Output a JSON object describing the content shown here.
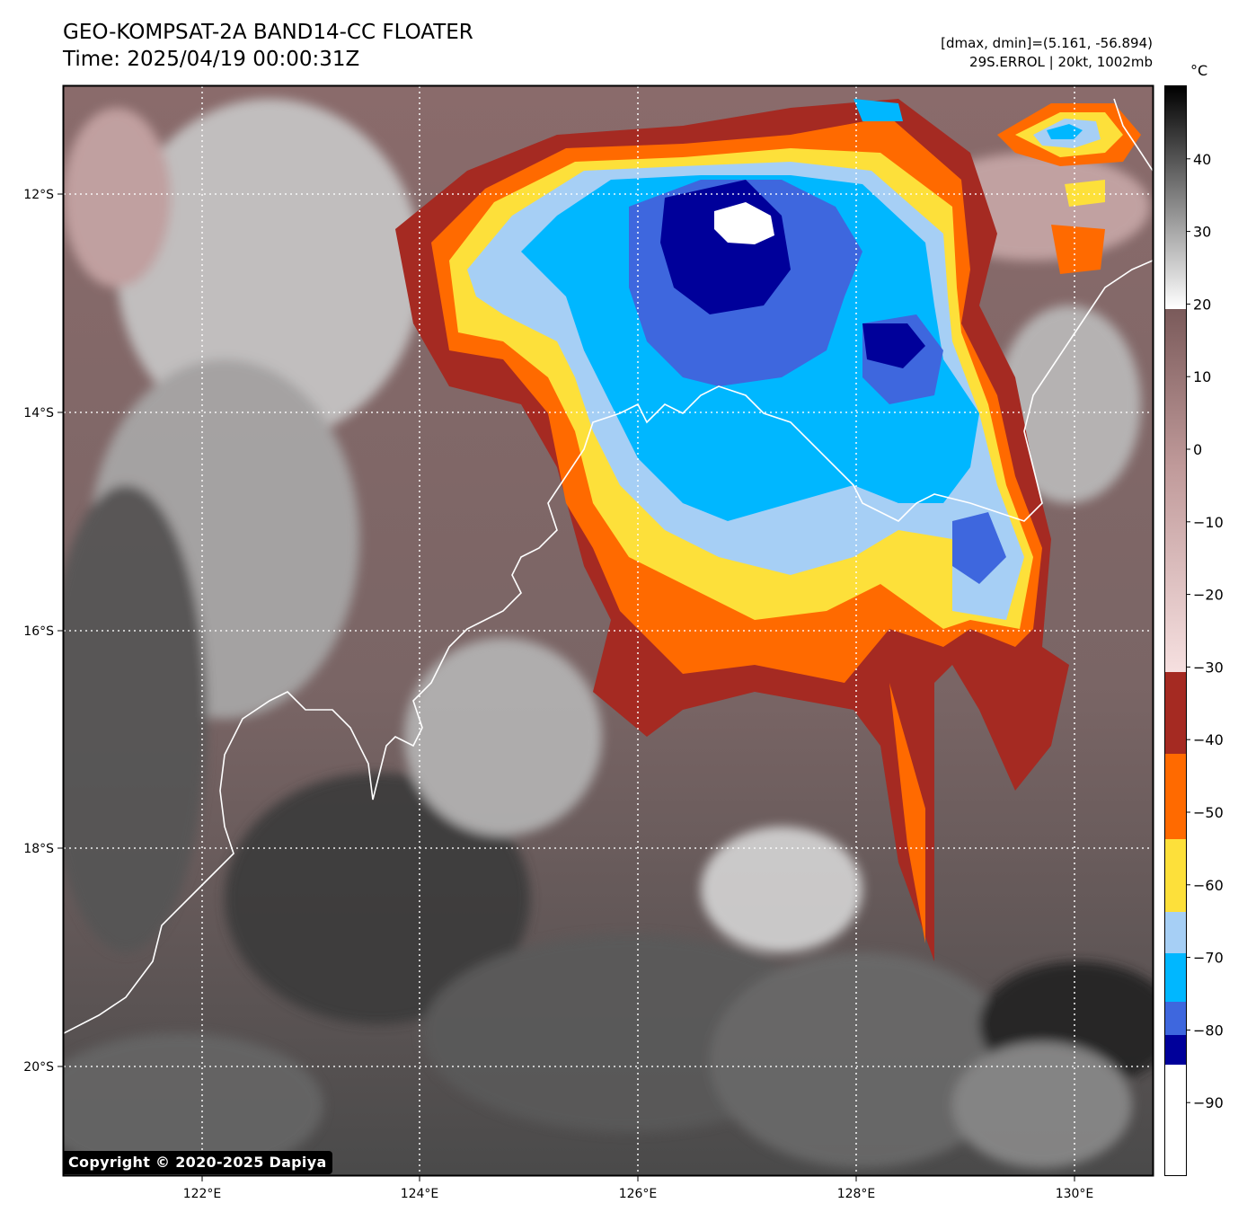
{
  "header": {
    "title_line1": "GEO-KOMPSAT-2A BAND14-CC FLOATER",
    "title_line2": "Time: 2025/04/19 00:00:31Z",
    "info_line1": "[dmax, dmin]=(5.161, -56.894)",
    "info_line2": "29S.ERROL | 20kt, 1002mb"
  },
  "map": {
    "lat_ticks": [
      "12°S",
      "14°S",
      "16°S",
      "18°S",
      "20°S"
    ],
    "lon_ticks": [
      "122°E",
      "124°E",
      "126°E",
      "128°E",
      "130°E"
    ],
    "lon_range": [
      120.75,
      130.7
    ],
    "lat_range": [
      -20.95,
      -10.95
    ],
    "grid": "dotted white",
    "coastline_color": "#ffffff",
    "background_shades": {
      "warm_dark": "#3a3a3a",
      "mid_gray": "#7a7a7a",
      "brown": "#7e5a5a",
      "pink": "#c9a3a3"
    },
    "cloud_top_colors": {
      "dark_red": "#a52a22",
      "orange": "#ff6a00",
      "yellow": "#fde03a",
      "light_blue": "#a6cff5",
      "sky_blue": "#00b7ff",
      "royal_blue": "#3e67de",
      "navy": "#00009a",
      "white": "#ffffff"
    }
  },
  "colorbar": {
    "unit": "°C",
    "range": [
      -100,
      50
    ],
    "tick_labels": [
      "40",
      "30",
      "20",
      "10",
      "0",
      "−10",
      "−20",
      "−30",
      "−40",
      "−50",
      "−60",
      "−70",
      "−80",
      "−90"
    ],
    "tick_values": [
      40,
      30,
      20,
      10,
      0,
      -10,
      -20,
      -30,
      -40,
      -50,
      -60,
      -70,
      -80,
      -90
    ]
  },
  "copyright": "Copyright © 2020-2025 Dapiya"
}
